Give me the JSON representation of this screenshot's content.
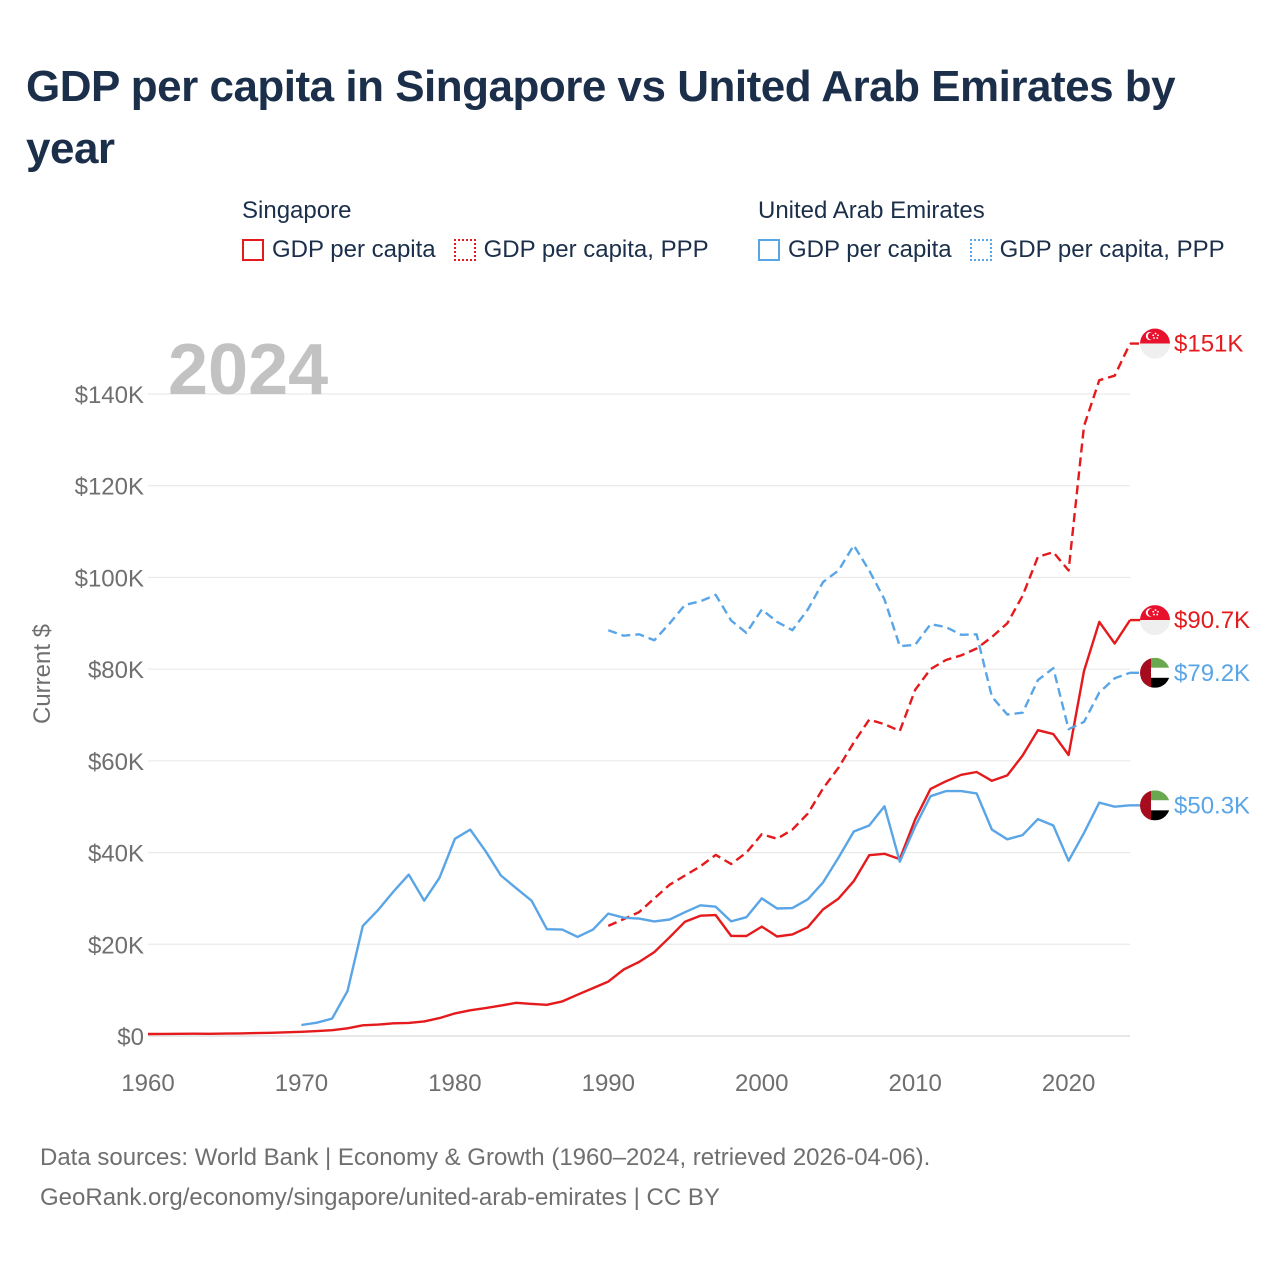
{
  "title": "GDP per capita in Singapore vs United Arab Emirates by year",
  "legend": {
    "groups": [
      {
        "name": "Singapore",
        "items": [
          {
            "label": "GDP per capita",
            "style": "solid",
            "color": "#e41a1c"
          },
          {
            "label": "GDP per capita, PPP",
            "style": "dotted",
            "color": "#e41a1c"
          }
        ]
      },
      {
        "name": "United Arab Emirates",
        "items": [
          {
            "label": "GDP per capita",
            "style": "solid",
            "color": "#5aa5e6"
          },
          {
            "label": "GDP per capita, PPP",
            "style": "dotted",
            "color": "#5aa5e6"
          }
        ]
      }
    ]
  },
  "year_watermark": "2024",
  "footer": {
    "line1": "Data sources: World Bank | Economy & Growth (1960–2024, retrieved 2026-04-06).",
    "line2": "GeoRank.org/economy/singapore/united-arab-emirates | CC BY"
  },
  "chart_data": {
    "type": "line",
    "title": "GDP per capita in Singapore vs United Arab Emirates by year",
    "xlabel": "",
    "ylabel": "Current $",
    "xlim": [
      1960,
      2024
    ],
    "ylim": [
      0,
      150000
    ],
    "xticks": [
      1960,
      1970,
      1980,
      1990,
      2000,
      2010,
      2020
    ],
    "xtick_labels": [
      "1960",
      "1970",
      "1980",
      "1990",
      "2000",
      "2010",
      "2020"
    ],
    "yticks": [
      0,
      20000,
      40000,
      60000,
      80000,
      100000,
      120000,
      140000
    ],
    "ytick_labels": [
      "$0",
      "$20K",
      "$40K",
      "$60K",
      "$80K",
      "$100K",
      "$120K",
      "$140K"
    ],
    "grid": true,
    "series": [
      {
        "name": "Singapore GDP per capita",
        "country": "Singapore",
        "dash": "solid",
        "color": "#e41a1c",
        "end_label": "$90.7K",
        "flag": "singapore-flag",
        "x": [
          1960,
          1961,
          1962,
          1963,
          1964,
          1965,
          1966,
          1967,
          1968,
          1969,
          1970,
          1971,
          1972,
          1973,
          1974,
          1975,
          1976,
          1977,
          1978,
          1979,
          1980,
          1981,
          1982,
          1983,
          1984,
          1985,
          1986,
          1987,
          1988,
          1989,
          1990,
          1991,
          1992,
          1993,
          1994,
          1995,
          1996,
          1997,
          1998,
          1999,
          2000,
          2001,
          2002,
          2003,
          2004,
          2005,
          2006,
          2007,
          2008,
          2009,
          2010,
          2011,
          2012,
          2013,
          2014,
          2015,
          2016,
          2017,
          2018,
          2019,
          2020,
          2021,
          2022,
          2023,
          2024
        ],
        "values": [
          428,
          449,
          472,
          511,
          485,
          516,
          567,
          626,
          708,
          812,
          925,
          1071,
          1264,
          1685,
          2341,
          2490,
          2760,
          2846,
          3193,
          3900,
          4928,
          5597,
          6077,
          6633,
          7234,
          7002,
          6800,
          7539,
          9010,
          10438,
          11862,
          14502,
          16136,
          18290,
          21553,
          24915,
          26233,
          26375,
          21829,
          21796,
          23853,
          21700,
          22160,
          23730,
          27609,
          29961,
          33769,
          39433,
          39722,
          38578,
          47237,
          53891,
          55546,
          56967,
          57563,
          55647,
          56828,
          61176,
          66679,
          65831,
          61274,
          79601,
          90300,
          85600,
          90700
        ]
      },
      {
        "name": "Singapore GDP per capita, PPP",
        "country": "Singapore",
        "dash": "dashed",
        "color": "#e41a1c",
        "end_label": "$151K",
        "flag": "singapore-flag",
        "x": [
          1990,
          1991,
          1992,
          1993,
          1994,
          1995,
          1996,
          1997,
          1998,
          1999,
          2000,
          2001,
          2002,
          2003,
          2004,
          2005,
          2006,
          2007,
          2008,
          2009,
          2010,
          2011,
          2012,
          2013,
          2014,
          2015,
          2016,
          2017,
          2018,
          2019,
          2020,
          2021,
          2022,
          2023,
          2024
        ],
        "values": [
          24000,
          25500,
          27000,
          30000,
          33000,
          35000,
          37000,
          39500,
          37500,
          40000,
          44000,
          43000,
          45000,
          48500,
          54000,
          58500,
          64000,
          69000,
          68000,
          66500,
          75500,
          80000,
          82000,
          83000,
          84500,
          87000,
          90000,
          96000,
          104500,
          105500,
          101500,
          133000,
          143000,
          144000,
          151000
        ]
      },
      {
        "name": "United Arab Emirates GDP per capita",
        "country": "United Arab Emirates",
        "dash": "solid",
        "color": "#5aa5e6",
        "end_label": "$50.3K",
        "flag": "uae-flag",
        "x": [
          1970,
          1971,
          1972,
          1973,
          1974,
          1975,
          1976,
          1977,
          1978,
          1979,
          1980,
          1981,
          1982,
          1983,
          1984,
          1985,
          1986,
          1987,
          1988,
          1989,
          1990,
          1991,
          1992,
          1993,
          1994,
          1995,
          1996,
          1997,
          1998,
          1999,
          2000,
          2001,
          2002,
          2003,
          2004,
          2005,
          2006,
          2007,
          2008,
          2009,
          2010,
          2011,
          2012,
          2013,
          2014,
          2015,
          2016,
          2017,
          2018,
          2019,
          2020,
          2021,
          2022,
          2023,
          2024
        ],
        "values": [
          2400,
          2900,
          3800,
          9800,
          24000,
          27500,
          31500,
          35200,
          29500,
          34500,
          43000,
          45000,
          40300,
          35000,
          32200,
          29500,
          23300,
          23200,
          21600,
          23200,
          26700,
          25800,
          25600,
          25000,
          25400,
          27000,
          28500,
          28200,
          25000,
          25900,
          30000,
          27800,
          27900,
          29800,
          33500,
          38900,
          44600,
          45900,
          50100,
          38000,
          45700,
          52300,
          53400,
          53400,
          52900,
          45000,
          42900,
          43800,
          47300,
          45900,
          38200,
          44300,
          50900,
          50000,
          50300
        ]
      },
      {
        "name": "United Arab Emirates GDP per capita, PPP",
        "country": "United Arab Emirates",
        "dash": "dashed",
        "color": "#5aa5e6",
        "end_label": "$79.2K",
        "flag": "uae-flag",
        "x": [
          1990,
          1991,
          1992,
          1993,
          1994,
          1995,
          1996,
          1997,
          1998,
          1999,
          2000,
          2001,
          2002,
          2003,
          2004,
          2005,
          2006,
          2007,
          2008,
          2009,
          2010,
          2011,
          2012,
          2013,
          2014,
          2015,
          2016,
          2017,
          2018,
          2019,
          2020,
          2021,
          2022,
          2023,
          2024
        ],
        "values": [
          88500,
          87300,
          87600,
          86300,
          90000,
          94000,
          94800,
          96200,
          90600,
          87900,
          93000,
          90300,
          88500,
          93000,
          99000,
          101500,
          107000,
          101500,
          95200,
          85000,
          85300,
          89800,
          89200,
          87500,
          87600,
          74000,
          70100,
          70500,
          77600,
          80200,
          66900,
          68500,
          74900,
          78000,
          79200
        ]
      }
    ]
  }
}
